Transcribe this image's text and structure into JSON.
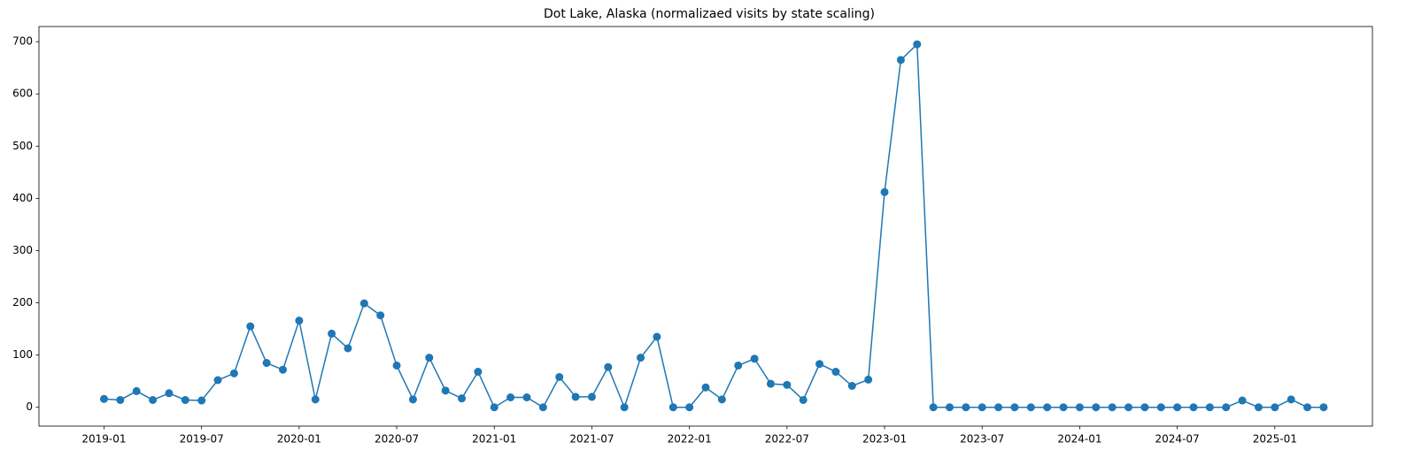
{
  "chart_data": {
    "type": "line",
    "title": "Dot Lake, Alaska (normalizaed visits by state scaling)",
    "x": [
      "2019-01",
      "2019-02",
      "2019-03",
      "2019-04",
      "2019-05",
      "2019-06",
      "2019-07",
      "2019-08",
      "2019-09",
      "2019-10",
      "2019-11",
      "2019-12",
      "2020-01",
      "2020-02",
      "2020-03",
      "2020-04",
      "2020-05",
      "2020-06",
      "2020-07",
      "2020-08",
      "2020-09",
      "2020-10",
      "2020-11",
      "2020-12",
      "2021-01",
      "2021-02",
      "2021-03",
      "2021-04",
      "2021-05",
      "2021-06",
      "2021-07",
      "2021-08",
      "2021-09",
      "2021-10",
      "2021-11",
      "2021-12",
      "2022-01",
      "2022-02",
      "2022-03",
      "2022-04",
      "2022-05",
      "2022-06",
      "2022-07",
      "2022-08",
      "2022-09",
      "2022-10",
      "2022-11",
      "2022-12",
      "2023-01",
      "2023-02",
      "2023-03",
      "2023-04",
      "2023-05",
      "2023-06",
      "2023-07",
      "2023-08",
      "2023-09",
      "2023-10",
      "2023-11",
      "2023-12",
      "2024-01",
      "2024-02",
      "2024-03",
      "2024-04",
      "2024-05",
      "2024-06",
      "2024-07",
      "2024-08",
      "2024-09",
      "2024-10",
      "2024-11",
      "2024-12",
      "2025-01",
      "2025-02",
      "2025-03",
      "2025-04"
    ],
    "series": [
      {
        "color": "#1f77b4",
        "values": [
          16,
          14,
          31,
          14,
          27,
          14,
          13,
          52,
          65,
          155,
          85,
          72,
          166,
          15,
          141,
          113,
          199,
          176,
          80,
          15,
          95,
          32,
          17,
          68,
          0,
          19,
          19,
          0,
          58,
          20,
          20,
          77,
          0,
          95,
          135,
          0,
          0,
          38,
          15,
          80,
          93,
          45,
          43,
          14,
          83,
          68,
          41,
          53,
          412,
          665,
          695,
          0,
          0,
          0,
          0,
          0,
          0,
          0,
          0,
          0,
          0,
          0,
          0,
          0,
          0,
          0,
          0,
          0,
          0,
          0,
          13,
          0,
          0,
          15,
          0,
          0
        ]
      }
    ],
    "xlim": [
      "2018-09",
      "2025-07"
    ],
    "xticks": [
      "2019-01",
      "2019-07",
      "2020-01",
      "2020-07",
      "2021-01",
      "2021-07",
      "2022-01",
      "2022-07",
      "2023-01",
      "2023-07",
      "2024-01",
      "2024-07",
      "2025-01"
    ],
    "ylim": [
      -36,
      729
    ],
    "yticks": [
      0,
      100,
      200,
      300,
      400,
      500,
      600,
      700
    ],
    "grid": false
  }
}
